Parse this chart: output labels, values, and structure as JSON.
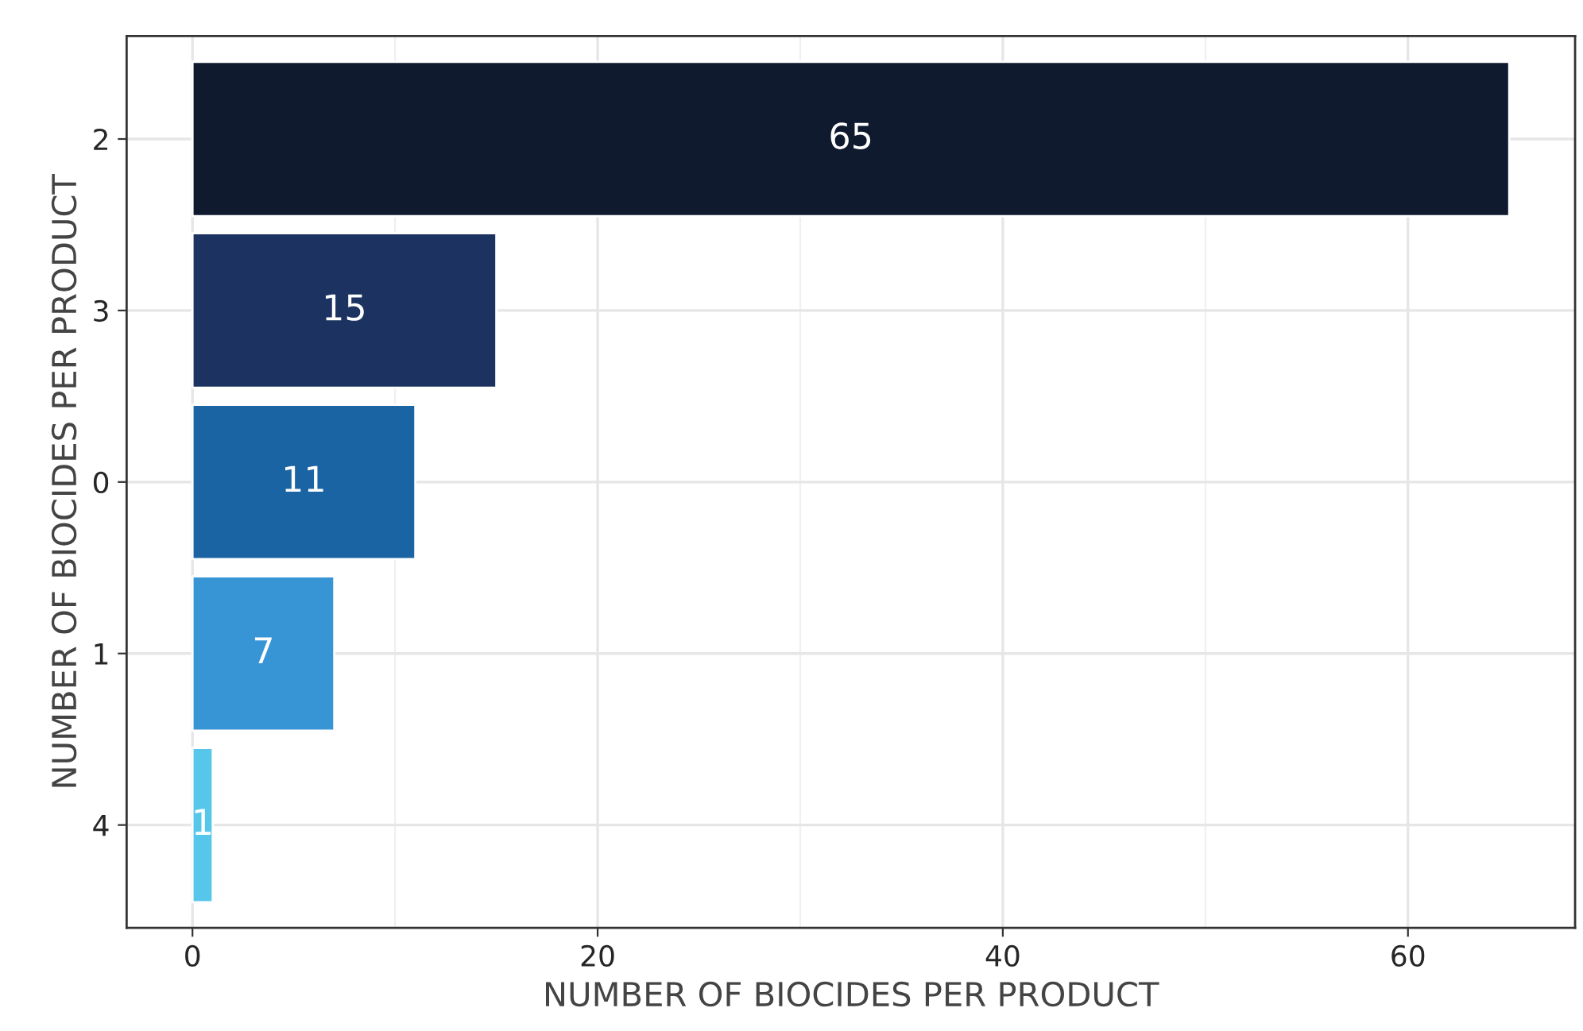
{
  "chart_data": {
    "type": "bar",
    "orientation": "horizontal",
    "xlabel": "NUMBER OF BIOCIDES PER PRODUCT",
    "ylabel": "NUMBER OF BIOCIDES PER PRODUCT",
    "categories": [
      "2",
      "3",
      "0",
      "1",
      "4"
    ],
    "values": [
      65,
      15,
      11,
      7,
      1
    ],
    "colors": [
      "#0f1a2e",
      "#1c3361",
      "#1a64a3",
      "#3795d5",
      "#56c7ea"
    ],
    "data_labels": true,
    "xlim": [
      -3.25,
      68.25
    ],
    "xticks": [
      0,
      20,
      40,
      60
    ],
    "grid": true,
    "legend": false
  }
}
